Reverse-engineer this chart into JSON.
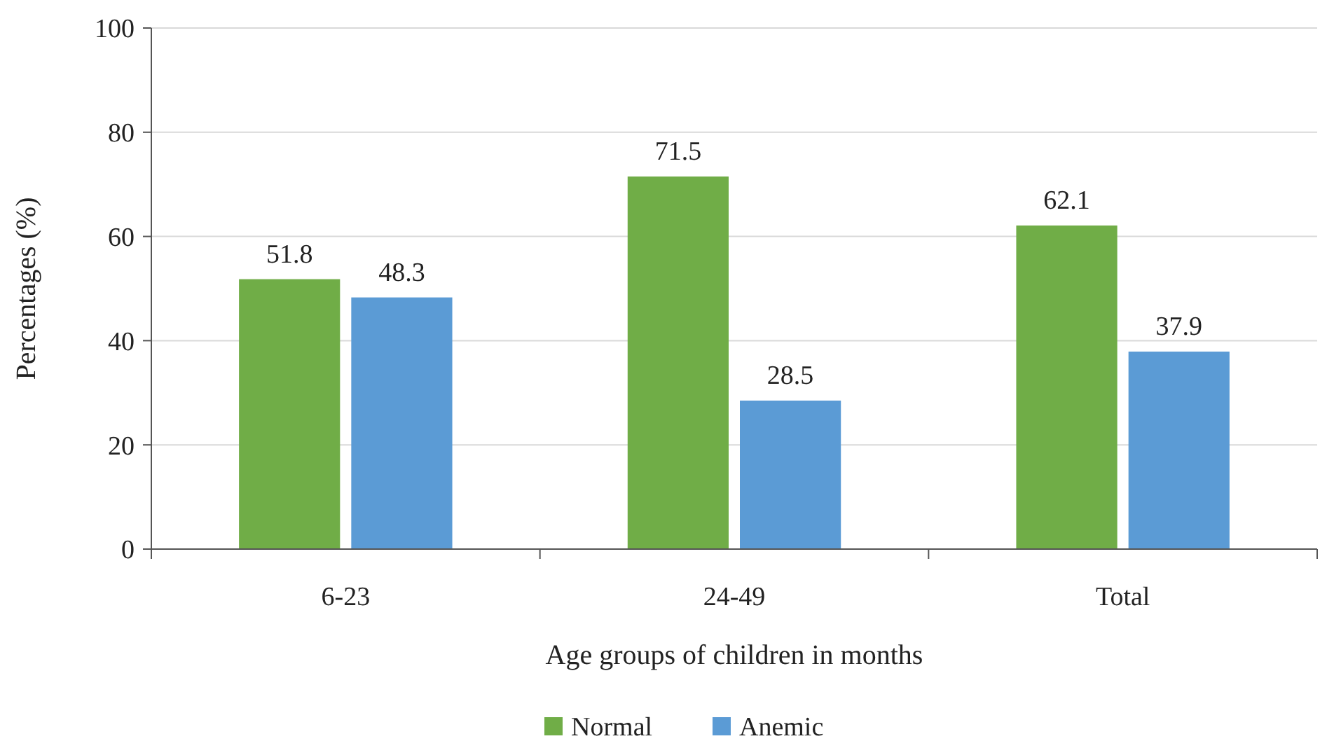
{
  "chart_data": {
    "type": "bar",
    "xlabel": "Age groups of children in months",
    "ylabel": "Percentages (%)",
    "categories": [
      "6-23",
      "24-49",
      "Total"
    ],
    "series": [
      {
        "name": "Normal",
        "color": "#70ad47",
        "values": [
          51.8,
          71.5,
          62.1
        ]
      },
      {
        "name": "Anemic",
        "color": "#5b9bd5",
        "values": [
          48.3,
          28.5,
          37.9
        ]
      }
    ],
    "ylim": [
      0,
      100
    ],
    "yticks": [
      0,
      20,
      40,
      60,
      80,
      100
    ],
    "grid": "y",
    "legend": "bottom",
    "data_labels": true
  }
}
